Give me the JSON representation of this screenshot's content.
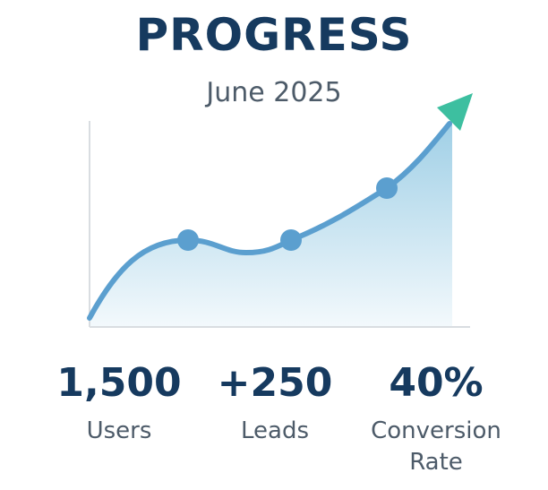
{
  "header": {
    "title": "PROGRESS",
    "subtitle": "June 2025"
  },
  "stats": [
    {
      "value": "1,500",
      "label": "Users"
    },
    {
      "value": "+250",
      "label": "Leads"
    },
    {
      "value": "40%",
      "label": "Conversion Rate"
    }
  ]
}
